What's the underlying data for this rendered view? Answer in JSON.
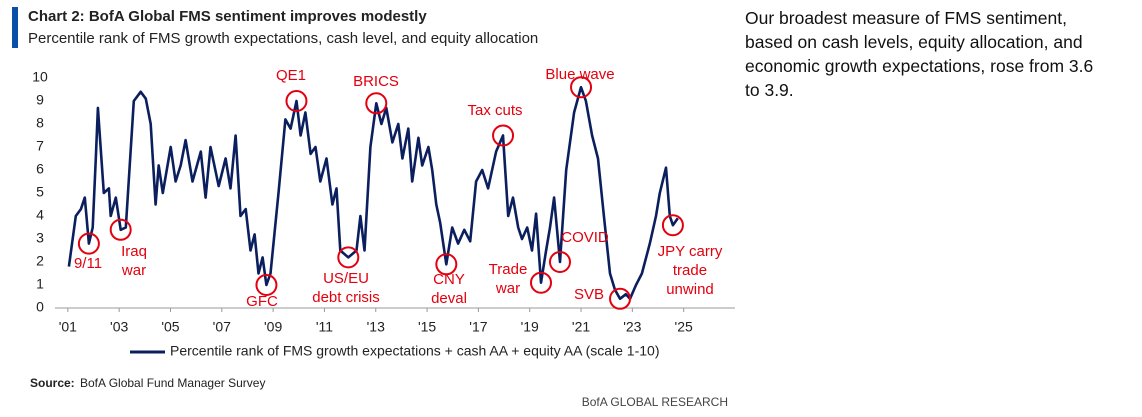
{
  "chart_data": {
    "type": "line",
    "title": "Chart 2: BofA Global FMS sentiment improves modestly",
    "subtitle": "Percentile rank of FMS growth expectations, cash level, and equity allocation",
    "source_label": "Source:",
    "source": "BofA Global Fund Manager Survey",
    "brand": "BofA GLOBAL RESEARCH",
    "commentary": "Our broadest measure of FMS sentiment, based on cash levels, equity allocation, and economic growth expectations, rose from 3.6 to 3.9.",
    "xlim": [
      2000.5,
      2027
    ],
    "xticks": [
      {
        "value": 2001,
        "label": "'01"
      },
      {
        "value": 2003,
        "label": "'03"
      },
      {
        "value": 2005,
        "label": "'05"
      },
      {
        "value": 2007,
        "label": "'07"
      },
      {
        "value": 2009,
        "label": "'09"
      },
      {
        "value": 2011,
        "label": "'11"
      },
      {
        "value": 2013,
        "label": "'13"
      },
      {
        "value": 2015,
        "label": "'15"
      },
      {
        "value": 2017,
        "label": "'17"
      },
      {
        "value": 2019,
        "label": "'19"
      },
      {
        "value": 2021,
        "label": "'21"
      },
      {
        "value": 2023,
        "label": "'23"
      },
      {
        "value": 2025,
        "label": "'25"
      }
    ],
    "ylim": [
      0,
      10
    ],
    "yticks": [
      0,
      1,
      2,
      3,
      4,
      5,
      6,
      7,
      8,
      9,
      10
    ],
    "grid": false,
    "annotation_color": "#e3000f",
    "series": [
      {
        "name": "Percentile rank of FMS growth expectations + cash AA + equity AA (scale 1-10)",
        "color": "#0b1f5e",
        "x": [
          2001.04,
          2001.31,
          2001.51,
          2001.66,
          2001.82,
          2001.97,
          2002.09,
          2002.17,
          2002.4,
          2002.6,
          2002.67,
          2002.87,
          2003.06,
          2003.26,
          2003.57,
          2003.84,
          2004.04,
          2004.23,
          2004.42,
          2004.54,
          2004.7,
          2005.01,
          2005.2,
          2005.4,
          2005.59,
          2005.86,
          2006.18,
          2006.37,
          2006.56,
          2006.88,
          2007.15,
          2007.34,
          2007.54,
          2007.73,
          2007.93,
          2008.12,
          2008.28,
          2008.43,
          2008.59,
          2008.74,
          2008.9,
          2009.21,
          2009.48,
          2009.68,
          2009.91,
          2010.07,
          2010.26,
          2010.46,
          2010.65,
          2010.84,
          2011.08,
          2011.31,
          2011.47,
          2011.62,
          2011.93,
          2012.25,
          2012.4,
          2012.56,
          2012.79,
          2013.02,
          2013.22,
          2013.41,
          2013.65,
          2013.88,
          2014.04,
          2014.27,
          2014.42,
          2014.66,
          2014.81,
          2015.05,
          2015.2,
          2015.36,
          2015.51,
          2015.75,
          2015.98,
          2016.21,
          2016.45,
          2016.68,
          2016.91,
          2017.15,
          2017.38,
          2017.69,
          2017.96,
          2018.16,
          2018.35,
          2018.55,
          2018.7,
          2018.9,
          2019.09,
          2019.25,
          2019.44,
          2019.64,
          2019.79,
          2019.95,
          2020.18,
          2020.42,
          2020.73,
          2021.0,
          2021.19,
          2021.43,
          2021.66,
          2021.89,
          2022.13,
          2022.32,
          2022.52,
          2022.75,
          2022.91,
          2023.14,
          2023.37,
          2023.68,
          2023.92,
          2024.07,
          2024.31,
          2024.46,
          2024.58,
          2024.77
        ],
        "values": [
          1.8,
          4.0,
          4.3,
          4.8,
          2.8,
          3.5,
          6.5,
          8.7,
          5.0,
          5.2,
          4.0,
          4.8,
          3.4,
          3.5,
          9.0,
          9.4,
          9.1,
          8.0,
          4.5,
          6.2,
          5.0,
          7.0,
          5.5,
          6.2,
          7.3,
          5.5,
          6.8,
          4.8,
          7.0,
          5.3,
          6.5,
          5.2,
          7.5,
          4.0,
          4.3,
          2.5,
          3.2,
          1.5,
          2.2,
          1.0,
          1.5,
          5.0,
          8.2,
          7.8,
          9.0,
          7.5,
          8.5,
          6.7,
          7.0,
          5.5,
          6.5,
          4.5,
          5.2,
          2.5,
          2.2,
          2.5,
          4.0,
          2.5,
          7.0,
          8.9,
          8.0,
          8.7,
          7.2,
          8.0,
          6.5,
          7.8,
          5.5,
          7.4,
          6.2,
          7.0,
          6.0,
          4.5,
          3.7,
          1.9,
          3.5,
          2.8,
          3.4,
          2.9,
          5.5,
          6.0,
          5.2,
          6.8,
          7.5,
          4.0,
          4.8,
          3.5,
          3.0,
          3.5,
          2.5,
          4.1,
          1.1,
          2.5,
          3.5,
          4.8,
          2.0,
          6.0,
          8.5,
          9.6,
          9.0,
          7.5,
          6.5,
          4.0,
          1.5,
          0.8,
          0.4,
          0.6,
          0.4,
          1.0,
          1.5,
          2.8,
          4.0,
          5.0,
          6.1,
          4.0,
          3.6,
          3.9
        ]
      }
    ],
    "annotations": [
      {
        "text": [
          "9/11"
        ]
      },
      {
        "text": [
          "Iraq",
          "war"
        ]
      },
      {
        "text": [
          "GFC"
        ]
      },
      {
        "text": [
          "QE1"
        ]
      },
      {
        "text": [
          "US/EU",
          "debt crisis"
        ]
      },
      {
        "text": [
          "BRICS"
        ]
      },
      {
        "text": [
          "CNY",
          "deval"
        ]
      },
      {
        "text": [
          "Tax cuts"
        ]
      },
      {
        "text": [
          "Trade",
          "war"
        ]
      },
      {
        "text": [
          "COVID"
        ]
      },
      {
        "text": [
          "Blue wave"
        ]
      },
      {
        "text": [
          "SVB"
        ]
      },
      {
        "text": [
          "JPY carry",
          "trade",
          "unwind"
        ]
      }
    ]
  }
}
